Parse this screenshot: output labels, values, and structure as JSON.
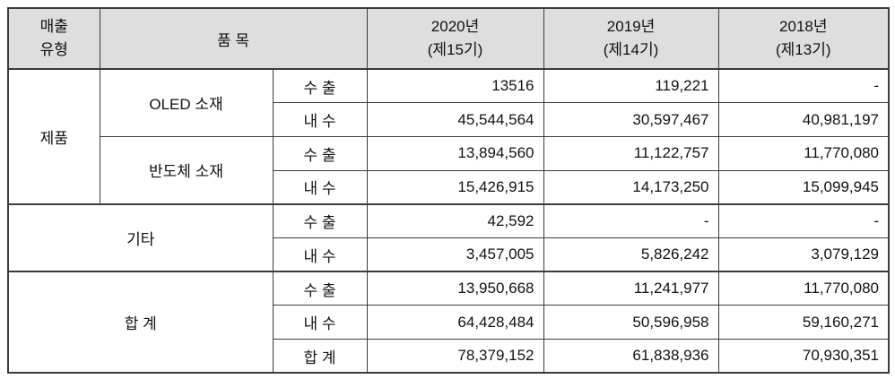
{
  "table": {
    "title_semantic": "매출유형별 품목 실적표",
    "header": {
      "sales_type_line1": "매출",
      "sales_type_line2": "유형",
      "item": "품 목",
      "y2020": {
        "year": "2020년",
        "period": "(제15기)"
      },
      "y2019": {
        "year": "2019년",
        "period": "(제14기)"
      },
      "y2018": {
        "year": "2018년",
        "period": "(제13기)"
      }
    },
    "rows": [
      {
        "sales_type": "제품",
        "item": "OLED 소재",
        "channel": "수 출",
        "v2020": "13516",
        "v2019": "119,221",
        "v2018": "-"
      },
      {
        "channel": "내 수",
        "v2020": "45,544,564",
        "v2019": "30,597,467",
        "v2018": "40,981,197"
      },
      {
        "item": "반도체 소재",
        "channel": "수 출",
        "v2020": "13,894,560",
        "v2019": "11,122,757",
        "v2018": "11,770,080"
      },
      {
        "channel": "내 수",
        "v2020": "15,426,915",
        "v2019": "14,173,250",
        "v2018": "15,099,945"
      },
      {
        "item": "기타",
        "channel": "수 출",
        "v2020": "42,592",
        "v2019": "-",
        "v2018": "-"
      },
      {
        "channel": "내 수",
        "v2020": "3,457,005",
        "v2019": "5,826,242",
        "v2018": "3,079,129"
      },
      {
        "item": "합 계",
        "channel": "수 출",
        "v2020": "13,950,668",
        "v2019": "11,241,977",
        "v2018": "11,770,080"
      },
      {
        "channel": "내 수",
        "v2020": "64,428,484",
        "v2019": "50,596,958",
        "v2018": "59,160,271"
      },
      {
        "channel": "합 계",
        "v2020": "78,379,152",
        "v2019": "61,838,936",
        "v2018": "70,930,351"
      }
    ],
    "colors": {
      "header_background": "#dedede",
      "border": "#3b3b3b",
      "text": "#111111",
      "page_background": "#ffffff"
    }
  }
}
